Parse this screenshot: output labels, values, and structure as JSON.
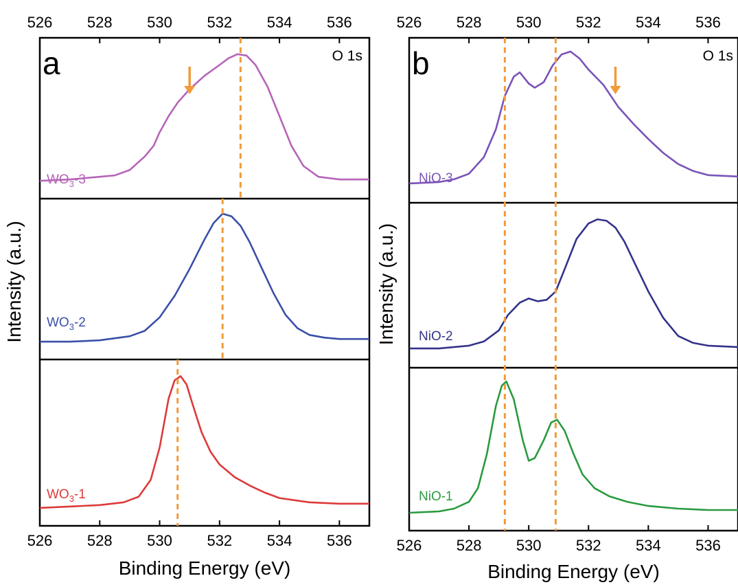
{
  "chart_data": [
    {
      "type": "line",
      "panel_label": "a",
      "core_level": "O 1s",
      "xlabel": "Binding Energy (eV)",
      "ylabel": "Intensity (a.u.)",
      "xlim": [
        526,
        537
      ],
      "xticks": [
        "526",
        "528",
        "530",
        "532",
        "534",
        "536"
      ],
      "series": [
        {
          "name": "WO3-3",
          "label_main": "WO",
          "label_sub": "3",
          "label_suffix": "-3",
          "color": "#b565b8",
          "x": [
            526,
            527,
            528,
            528.5,
            529,
            529.5,
            529.8,
            530,
            530.3,
            530.6,
            531,
            531.5,
            532,
            532.3,
            532.6,
            532.9,
            533.2,
            533.6,
            534,
            534.4,
            534.8,
            535.3,
            536,
            537
          ],
          "y": [
            0.02,
            0.03,
            0.05,
            0.06,
            0.1,
            0.2,
            0.28,
            0.38,
            0.5,
            0.6,
            0.7,
            0.8,
            0.88,
            0.93,
            0.96,
            0.95,
            0.88,
            0.72,
            0.5,
            0.28,
            0.13,
            0.05,
            0.03,
            0.03
          ],
          "dashed_line_x": 532.7,
          "arrow_x": 531.0
        },
        {
          "name": "WO3-2",
          "label_main": "WO",
          "label_sub": "3",
          "label_suffix": "-2",
          "color": "#3a4fa8",
          "x": [
            526,
            527,
            528,
            529,
            529.5,
            530,
            530.5,
            531,
            531.5,
            531.8,
            532.1,
            532.4,
            532.7,
            533,
            533.4,
            533.8,
            534.2,
            534.6,
            535,
            535.5,
            536,
            537
          ],
          "y": [
            0.02,
            0.02,
            0.03,
            0.06,
            0.1,
            0.2,
            0.36,
            0.56,
            0.78,
            0.9,
            0.97,
            0.95,
            0.88,
            0.76,
            0.57,
            0.38,
            0.22,
            0.12,
            0.07,
            0.05,
            0.04,
            0.04
          ],
          "dashed_line_x": 532.1
        },
        {
          "name": "WO3-1",
          "label_main": "WO",
          "label_sub": "3",
          "label_suffix": "-1",
          "color": "#dd3a3a",
          "x": [
            526,
            527,
            528,
            528.8,
            529.3,
            529.7,
            530,
            530.3,
            530.5,
            530.7,
            530.9,
            531.1,
            531.4,
            531.7,
            532,
            532.5,
            533,
            533.5,
            534,
            535,
            536,
            537
          ],
          "y": [
            0.02,
            0.03,
            0.04,
            0.06,
            0.1,
            0.22,
            0.45,
            0.8,
            0.93,
            0.96,
            0.9,
            0.76,
            0.56,
            0.42,
            0.33,
            0.24,
            0.18,
            0.13,
            0.09,
            0.06,
            0.05,
            0.05
          ],
          "dashed_line_x": 530.6
        }
      ]
    },
    {
      "type": "line",
      "panel_label": "b",
      "core_level": "O 1s",
      "xlabel": "Binding Energy (eV)",
      "ylabel": "Intensity (a.u.)",
      "xlim": [
        526,
        537
      ],
      "xticks": [
        "526",
        "528",
        "530",
        "532",
        "534",
        "536"
      ],
      "dashed_lines_x": [
        529.2,
        530.9
      ],
      "series": [
        {
          "name": "NiO-3",
          "label_main": "NiO-3",
          "label_sub": "",
          "label_suffix": "",
          "color": "#7a53b8",
          "x": [
            526,
            527,
            527.5,
            528,
            528.5,
            528.9,
            529.2,
            529.5,
            529.7,
            530,
            530.2,
            530.5,
            530.8,
            531.1,
            531.4,
            531.7,
            532,
            532.5,
            533,
            533.5,
            534,
            534.5,
            535,
            535.5,
            536,
            537
          ],
          "y": [
            0.03,
            0.04,
            0.06,
            0.1,
            0.22,
            0.42,
            0.66,
            0.8,
            0.83,
            0.75,
            0.72,
            0.76,
            0.88,
            0.96,
            0.98,
            0.93,
            0.85,
            0.74,
            0.58,
            0.46,
            0.35,
            0.25,
            0.17,
            0.12,
            0.09,
            0.08
          ],
          "arrow_x": 532.9
        },
        {
          "name": "NiO-2",
          "label_main": "NiO-2",
          "label_sub": "",
          "label_suffix": "",
          "color": "#33338a",
          "x": [
            526,
            527,
            528,
            528.5,
            529,
            529.3,
            529.7,
            530,
            530.3,
            530.6,
            530.9,
            531.2,
            531.6,
            532,
            532.3,
            532.6,
            532.9,
            533.2,
            533.6,
            534,
            534.5,
            535,
            535.5,
            536,
            537
          ],
          "y": [
            0.03,
            0.03,
            0.05,
            0.08,
            0.16,
            0.27,
            0.36,
            0.39,
            0.37,
            0.38,
            0.44,
            0.6,
            0.82,
            0.93,
            0.96,
            0.95,
            0.9,
            0.8,
            0.62,
            0.44,
            0.25,
            0.12,
            0.07,
            0.05,
            0.04
          ]
        },
        {
          "name": "NiO-1",
          "label_main": "NiO-1",
          "label_sub": "",
          "label_suffix": "",
          "color": "#2a9a3f",
          "x": [
            526,
            527,
            527.5,
            528,
            528.3,
            528.6,
            528.9,
            529.1,
            529.25,
            529.5,
            529.8,
            530,
            530.2,
            530.5,
            530.75,
            530.95,
            531.2,
            531.5,
            531.8,
            532.2,
            532.7,
            533.3,
            534,
            535,
            536,
            537
          ],
          "y": [
            0.02,
            0.03,
            0.05,
            0.1,
            0.2,
            0.45,
            0.8,
            0.95,
            0.98,
            0.85,
            0.55,
            0.4,
            0.42,
            0.55,
            0.68,
            0.7,
            0.62,
            0.45,
            0.3,
            0.2,
            0.14,
            0.1,
            0.07,
            0.05,
            0.04,
            0.04
          ]
        }
      ]
    }
  ],
  "colors": {
    "reference_lines": "#f29a3a",
    "frame": "#000000"
  }
}
